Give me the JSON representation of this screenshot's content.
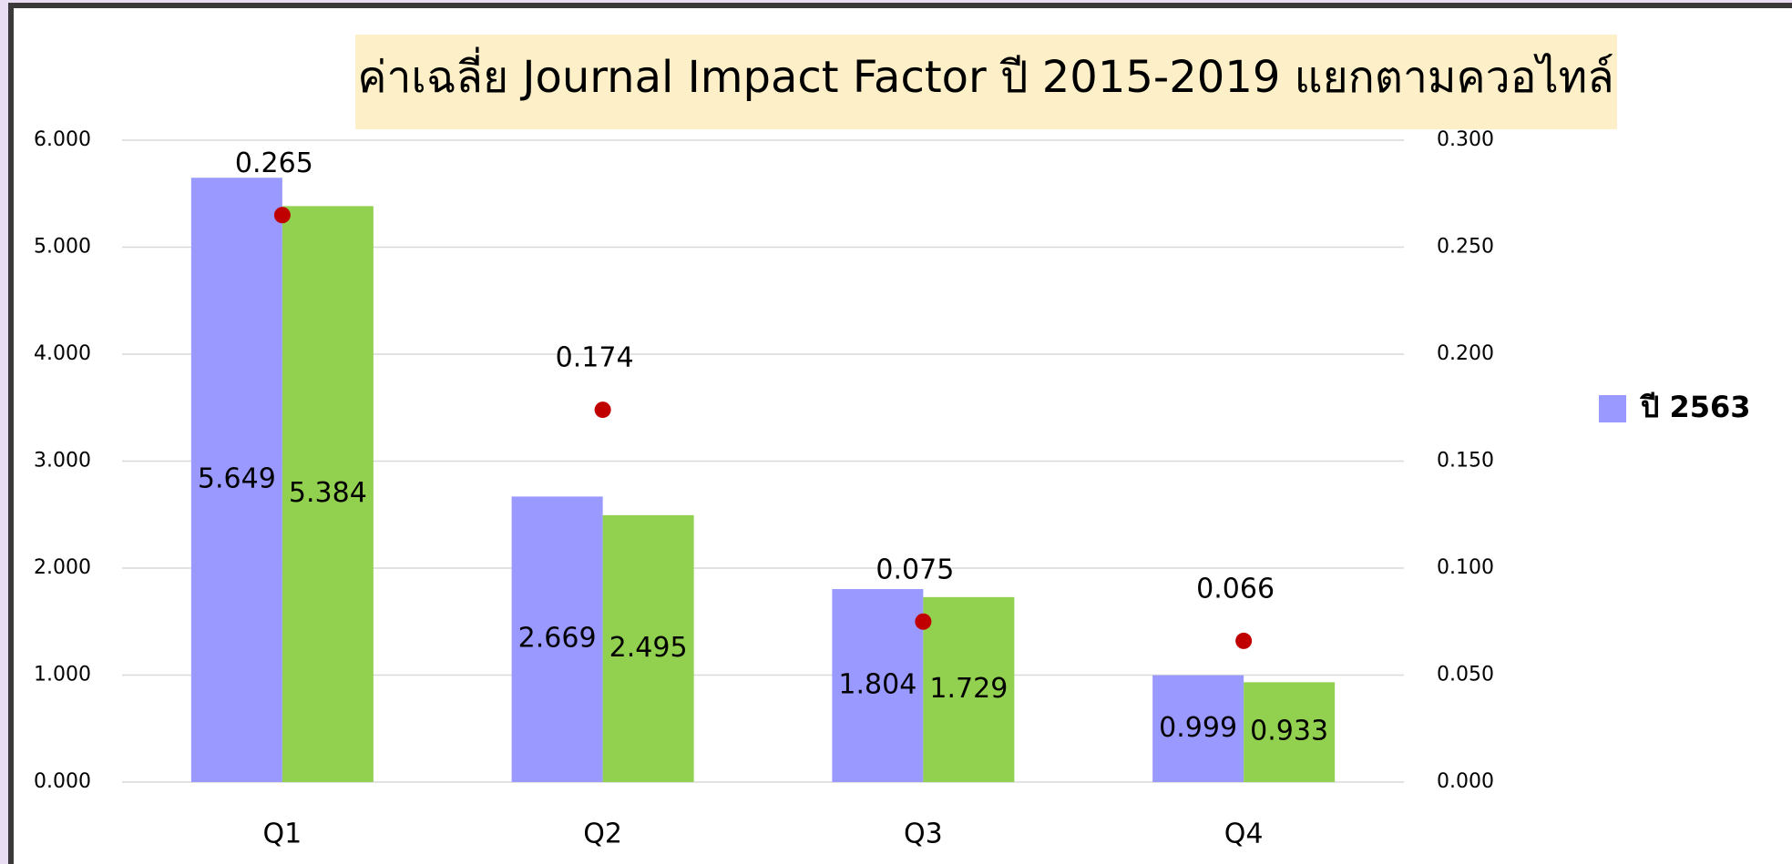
{
  "chart_data": {
    "type": "bar",
    "title": "ค่าเฉลี่ย Journal Impact Factor ปี 2015-2019 แยกตามควอไทล์",
    "categories": [
      "Q1",
      "Q2",
      "Q3",
      "Q4"
    ],
    "series": [
      {
        "name": "ปี 2563",
        "color": "#9999ff",
        "values": [
          5.649,
          2.669,
          1.804,
          0.999
        ]
      },
      {
        "color": "#92d050",
        "values": [
          5.384,
          2.495,
          1.729,
          0.933
        ]
      },
      {
        "type": "scatter",
        "axis": "y2",
        "color": "#c00000",
        "values": [
          0.265,
          0.174,
          0.075,
          0.066
        ]
      }
    ],
    "ylim": [
      0,
      6
    ],
    "yticks": [
      {
        "value": 0,
        "label": "0.000"
      },
      {
        "value": 1,
        "label": "1.000"
      },
      {
        "value": 2,
        "label": "2.000"
      },
      {
        "value": 3,
        "label": "3.000"
      },
      {
        "value": 4,
        "label": "4.000"
      },
      {
        "value": 5,
        "label": "5.000"
      },
      {
        "value": 6,
        "label": "6.000"
      }
    ],
    "y2lim": [
      0,
      0.3
    ],
    "y2ticks": [
      {
        "value": 0,
        "label": "0.000"
      },
      {
        "value": 0.05,
        "label": "0.050"
      },
      {
        "value": 0.1,
        "label": "0.100"
      },
      {
        "value": 0.15,
        "label": "0.150"
      },
      {
        "value": 0.2,
        "label": "0.200"
      },
      {
        "value": 0.25,
        "label": "0.250"
      },
      {
        "value": 0.3,
        "label": "0.300"
      }
    ],
    "grid": true,
    "legend": "right"
  }
}
